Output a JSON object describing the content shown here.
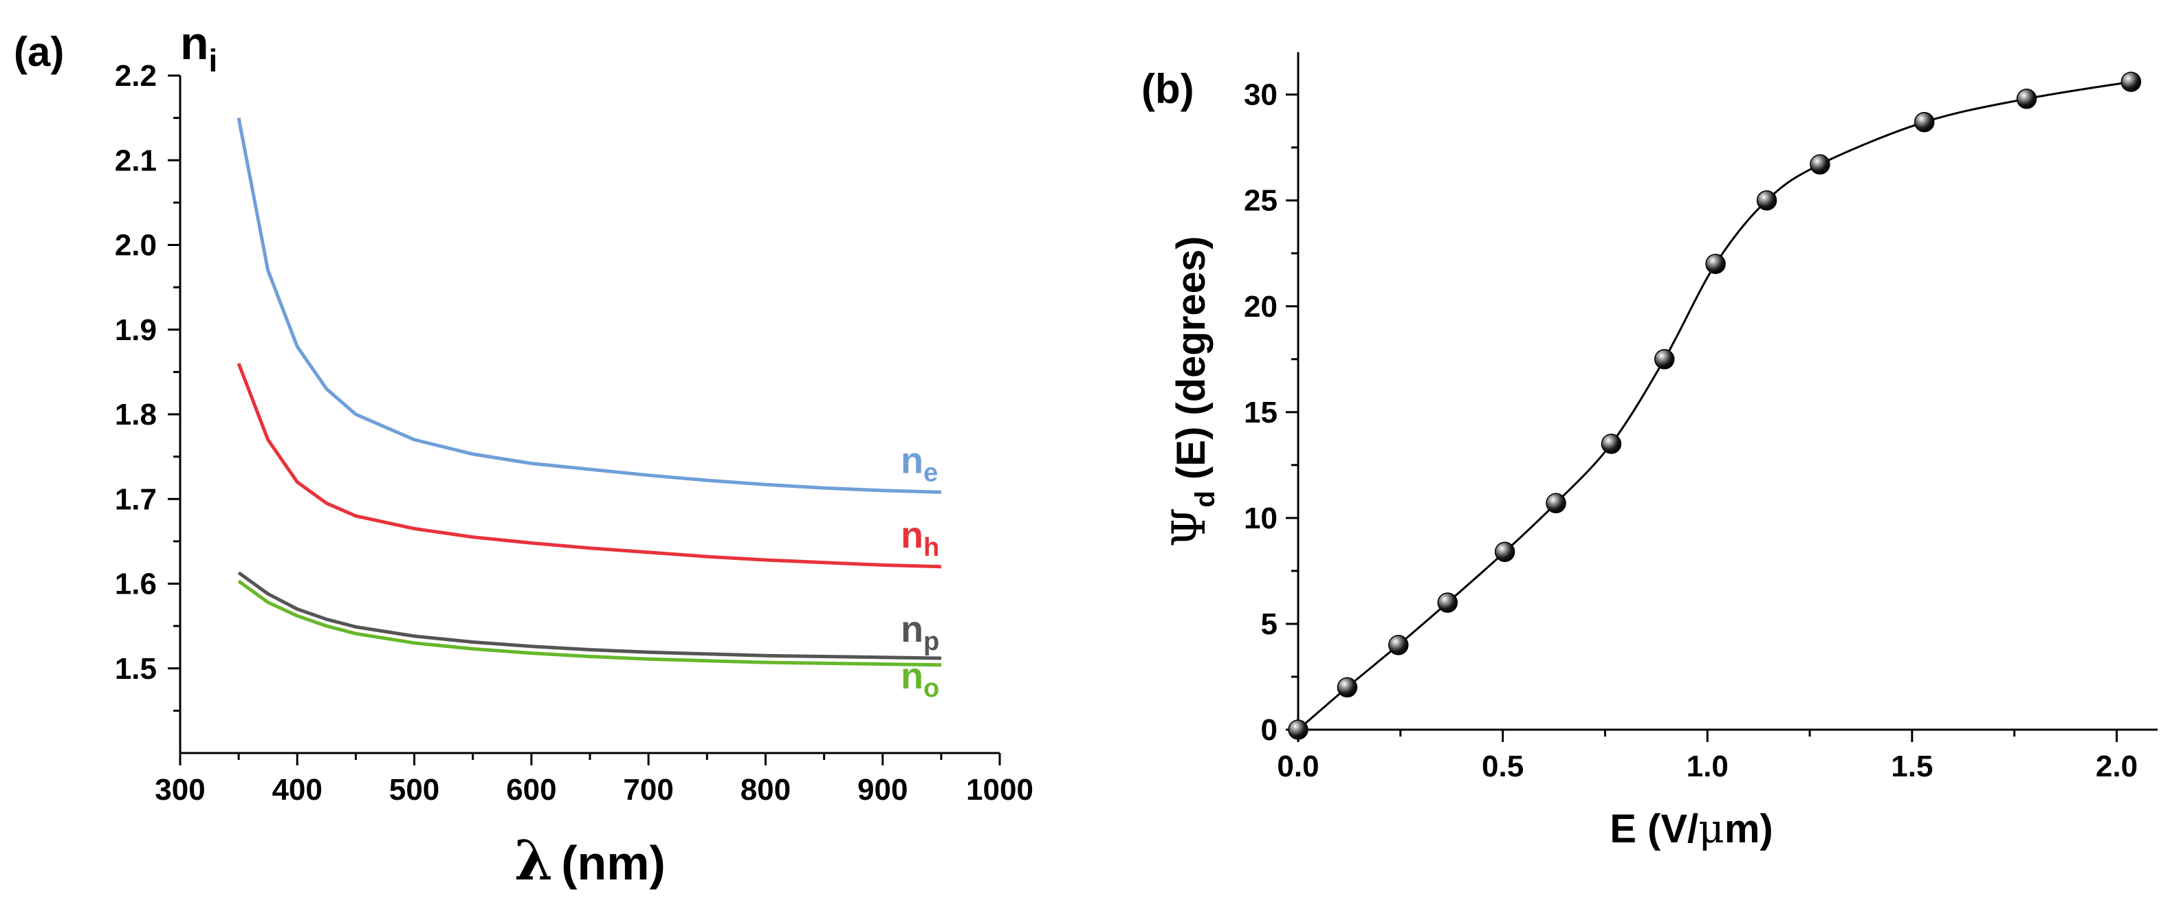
{
  "chart_data": [
    {
      "panel_label": "(a)",
      "type": "line",
      "title": "",
      "ylabel_main": "n",
      "ylabel_sub": "i",
      "xlabel_symbol": "λ",
      "xlabel_unit": "(nm)",
      "xlim": [
        300,
        1000
      ],
      "ylim": [
        1.4,
        2.2
      ],
      "xticks": [
        "300",
        "400",
        "500",
        "600",
        "700",
        "800",
        "900",
        "1000"
      ],
      "yticks": [
        "1.5",
        "1.6",
        "1.7",
        "1.8",
        "1.9",
        "2.0",
        "2.1",
        "2.2"
      ],
      "x": [
        350,
        375,
        400,
        425,
        450,
        500,
        550,
        600,
        650,
        700,
        750,
        800,
        850,
        900,
        950
      ],
      "series": [
        {
          "name": "ne",
          "label_main": "n",
          "label_sub": "e",
          "color": "#6f9fd8",
          "values": [
            2.15,
            1.97,
            1.88,
            1.83,
            1.8,
            1.77,
            1.753,
            1.742,
            1.735,
            1.728,
            1.722,
            1.717,
            1.713,
            1.71,
            1.708
          ]
        },
        {
          "name": "nh",
          "label_main": "n",
          "label_sub": "h",
          "color": "#e8323a",
          "values": [
            1.86,
            1.77,
            1.72,
            1.695,
            1.68,
            1.665,
            1.655,
            1.648,
            1.642,
            1.637,
            1.632,
            1.628,
            1.625,
            1.622,
            1.62
          ]
        },
        {
          "name": "np",
          "label_main": "n",
          "label_sub": "p",
          "color": "#555555",
          "values": [
            1.613,
            1.588,
            1.57,
            1.558,
            1.549,
            1.538,
            1.531,
            1.526,
            1.522,
            1.519,
            1.517,
            1.515,
            1.514,
            1.513,
            1.512
          ]
        },
        {
          "name": "no",
          "label_main": "n",
          "label_sub": "o",
          "color": "#66b82a",
          "values": [
            1.603,
            1.578,
            1.562,
            1.55,
            1.541,
            1.53,
            1.523,
            1.518,
            1.514,
            1.511,
            1.509,
            1.507,
            1.506,
            1.505,
            1.504
          ]
        }
      ]
    },
    {
      "panel_label": "(b)",
      "type": "scatter",
      "title": "",
      "ylabel_symbol": "Ψ",
      "ylabel_sub": "d",
      "ylabel_rest": " (E) (degrees)",
      "xlabel_main": "E (V/",
      "xlabel_mu": "μ",
      "xlabel_end": "m)",
      "xlim": [
        0.0,
        2.1
      ],
      "ylim": [
        0,
        32
      ],
      "xticks": [
        "0.0",
        "0.5",
        "1.0",
        "1.5",
        "2.0"
      ],
      "yticks": [
        "0",
        "5",
        "10",
        "15",
        "20",
        "25",
        "30"
      ],
      "x": [
        0.0,
        0.12,
        0.245,
        0.365,
        0.505,
        0.63,
        0.765,
        0.895,
        1.02,
        1.145,
        1.275,
        1.53,
        1.78,
        2.035
      ],
      "values": [
        0,
        2.0,
        4.0,
        6.0,
        8.4,
        10.7,
        13.5,
        17.5,
        22.0,
        25.0,
        26.7,
        28.7,
        29.8,
        30.6
      ],
      "line_color": "#000000",
      "marker_color": "#000000"
    }
  ]
}
